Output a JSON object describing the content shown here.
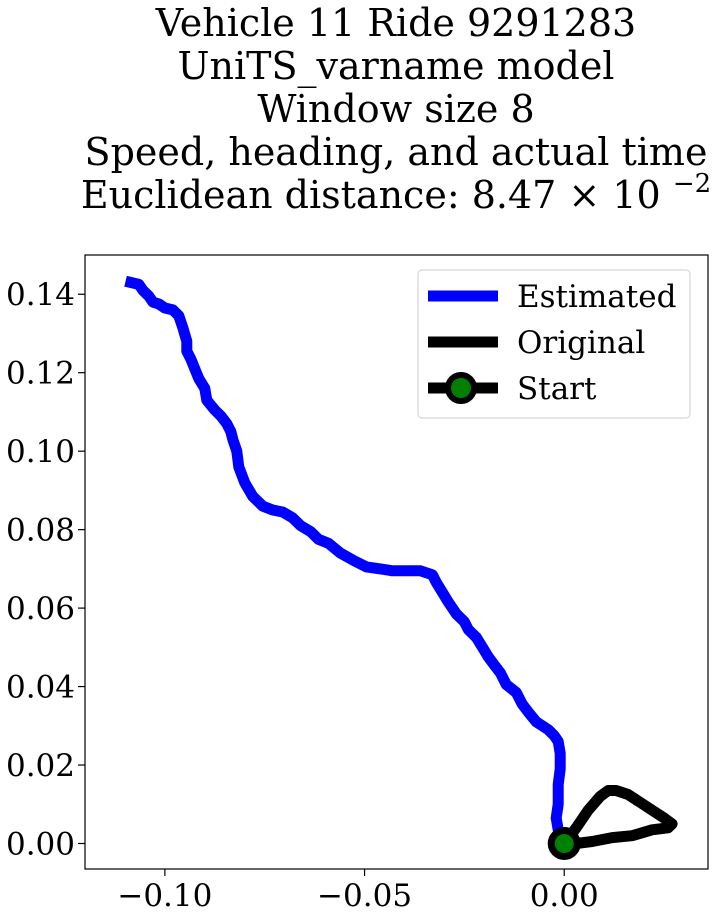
{
  "chart_data": {
    "type": "line",
    "title_lines": [
      "Vehicle 11 Ride 9291283",
      "UniTS_varname model",
      "Window size 8",
      "Speed, heading, and actual time"
    ],
    "title_metric_prefix": "Euclidean distance: 8.47",
    "title_metric_times": "×",
    "title_metric_base": "10",
    "title_metric_exponent": "−2",
    "xlabel": "",
    "ylabel": "",
    "xlim": [
      -0.12,
      0.036
    ],
    "ylim": [
      -0.0065,
      0.15
    ],
    "x_ticks": [
      {
        "value": -0.1,
        "label": "−0.10"
      },
      {
        "value": -0.05,
        "label": "−0.05"
      },
      {
        "value": 0.0,
        "label": "0.00"
      }
    ],
    "y_ticks": [
      {
        "value": 0.0,
        "label": "0.00"
      },
      {
        "value": 0.02,
        "label": "0.02"
      },
      {
        "value": 0.04,
        "label": "0.04"
      },
      {
        "value": 0.06,
        "label": "0.06"
      },
      {
        "value": 0.08,
        "label": "0.08"
      },
      {
        "value": 0.1,
        "label": "0.10"
      },
      {
        "value": 0.12,
        "label": "0.12"
      },
      {
        "value": 0.14,
        "label": "0.14"
      }
    ],
    "grid": false,
    "legend_position": "top-right",
    "series": [
      {
        "name": "Estimated",
        "color": "#0000ff",
        "x": [
          0.0,
          -0.0015,
          -0.002,
          -0.0015,
          -0.0015,
          -0.001,
          -0.001,
          -0.0015,
          -0.0025,
          -0.004,
          -0.007,
          -0.009,
          -0.0105,
          -0.012,
          -0.0145,
          -0.016,
          -0.0175,
          -0.019,
          -0.0205,
          -0.022,
          -0.024,
          -0.025,
          -0.027,
          -0.029,
          -0.0305,
          -0.032,
          -0.033,
          -0.036,
          -0.039,
          -0.0415,
          -0.043,
          -0.046,
          -0.0495,
          -0.0525,
          -0.056,
          -0.059,
          -0.0615,
          -0.0635,
          -0.066,
          -0.068,
          -0.0705,
          -0.073,
          -0.0755,
          -0.078,
          -0.08,
          -0.0815,
          -0.082,
          -0.083,
          -0.0835,
          -0.0845,
          -0.086,
          -0.0875,
          -0.0895,
          -0.09,
          -0.0915,
          -0.0925,
          -0.0935,
          -0.0945,
          -0.0945,
          -0.0955,
          -0.0965,
          -0.098,
          -0.1,
          -0.1015,
          -0.103,
          -0.104,
          -0.1055,
          -0.1065,
          -0.1085
        ],
        "y": [
          0.0015,
          0.0035,
          0.0065,
          0.01,
          0.015,
          0.019,
          0.023,
          0.026,
          0.0275,
          0.029,
          0.031,
          0.0335,
          0.0355,
          0.0385,
          0.0405,
          0.0435,
          0.0455,
          0.0475,
          0.05,
          0.0525,
          0.0545,
          0.0565,
          0.0585,
          0.0615,
          0.064,
          0.0665,
          0.0685,
          0.0695,
          0.0695,
          0.0695,
          0.0695,
          0.07,
          0.0705,
          0.072,
          0.074,
          0.0765,
          0.0775,
          0.0795,
          0.081,
          0.083,
          0.0845,
          0.085,
          0.086,
          0.0885,
          0.092,
          0.096,
          0.1,
          0.103,
          0.105,
          0.107,
          0.109,
          0.1105,
          0.113,
          0.116,
          0.1185,
          0.121,
          0.1235,
          0.1255,
          0.128,
          0.1315,
          0.1345,
          0.136,
          0.1365,
          0.1375,
          0.138,
          0.1395,
          0.141,
          0.1425,
          0.143
        ]
      },
      {
        "name": "Original",
        "color": "#000000",
        "x": [
          0.0,
          0.003,
          0.006,
          0.009,
          0.011,
          0.013,
          0.016,
          0.019,
          0.022,
          0.025,
          0.027,
          0.026,
          0.022,
          0.017,
          0.012,
          0.007,
          0.003,
          0.0
        ],
        "y": [
          0.0,
          0.004,
          0.0085,
          0.012,
          0.0135,
          0.0135,
          0.0125,
          0.0105,
          0.0085,
          0.0065,
          0.005,
          0.004,
          0.0035,
          0.002,
          0.0015,
          0.0005,
          0.0,
          0.0
        ]
      }
    ],
    "start_marker": {
      "name": "Start",
      "x": 0.0,
      "y": 0.0,
      "edge_color": "#000000",
      "face_color": "#008000"
    }
  }
}
